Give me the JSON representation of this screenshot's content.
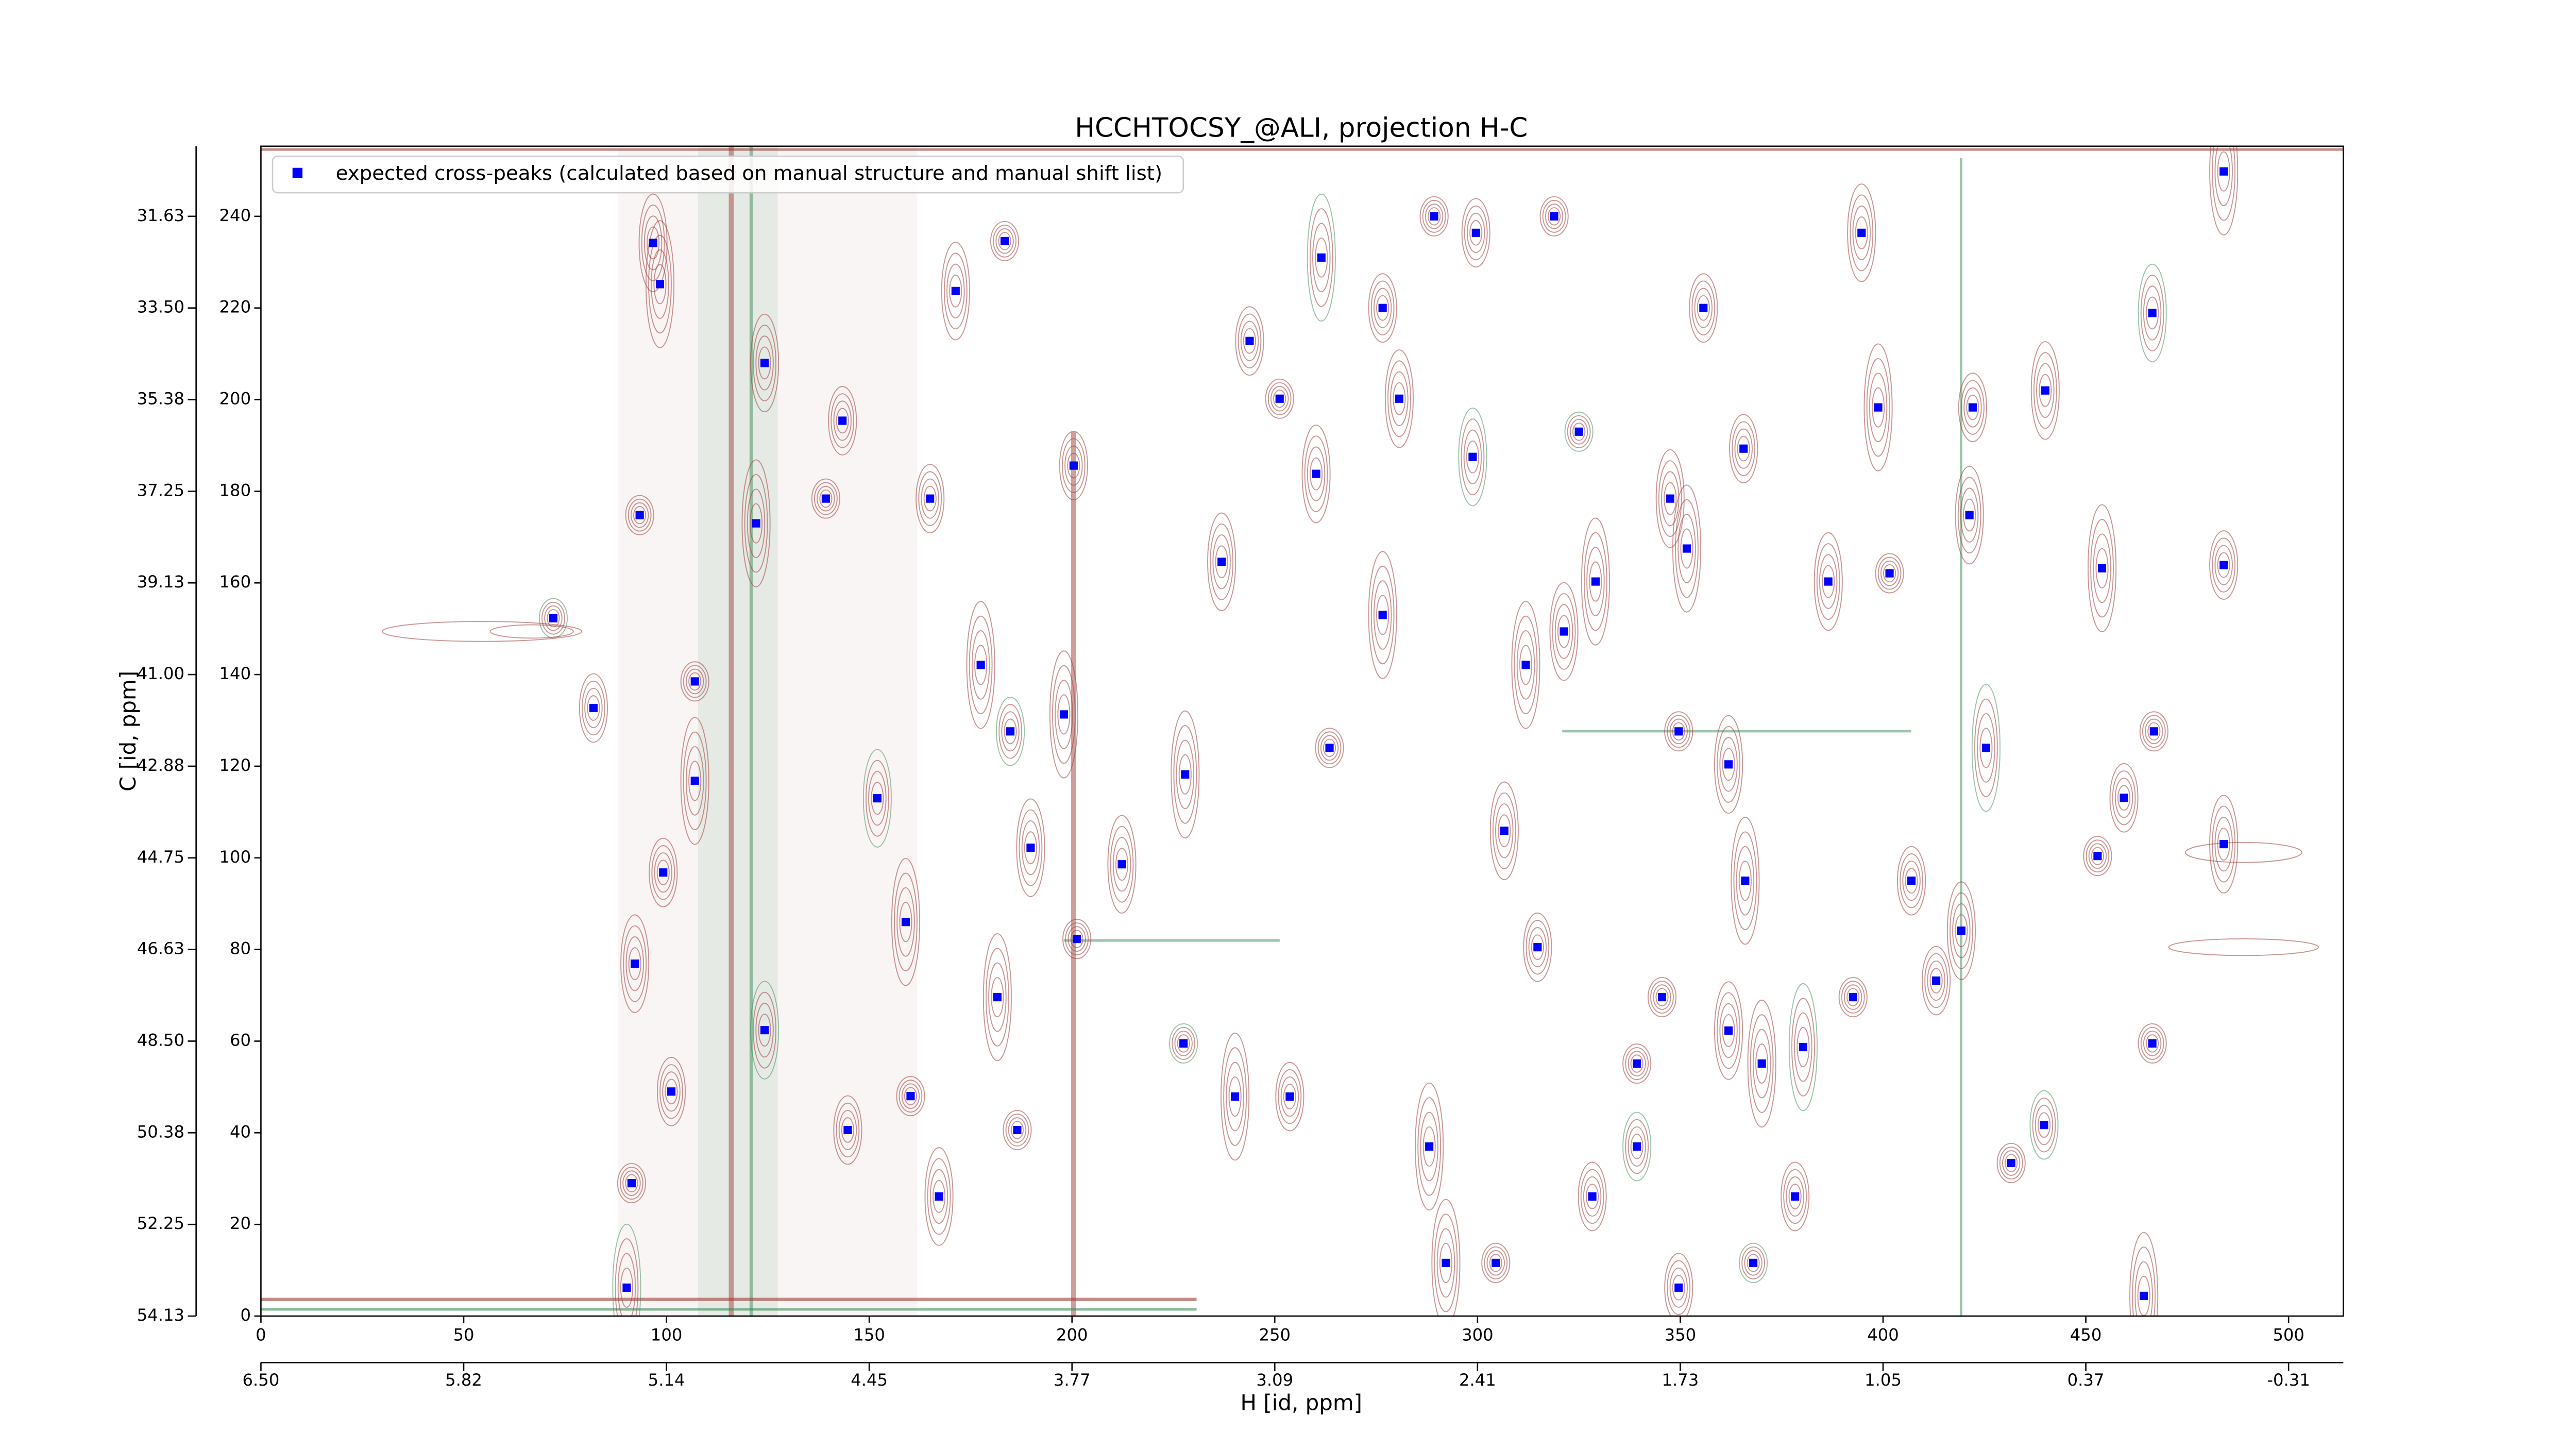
{
  "chart_data": {
    "type": "scatter",
    "title": "HCCHTOCSY_@ALI, projection H-C",
    "xlabel": "H [id, ppm]",
    "ylabel": "C [id, ppm]",
    "xlim": [
      0,
      513.5
    ],
    "ylim": [
      0,
      255.3
    ],
    "xticks": [
      0,
      50,
      100,
      150,
      200,
      250,
      300,
      350,
      400,
      450,
      500
    ],
    "yticks": [
      0,
      20,
      40,
      60,
      80,
      100,
      120,
      140,
      160,
      180,
      200,
      220,
      240
    ],
    "x2lim": [
      0,
      513.5
    ],
    "x2ticks": [
      {
        "value": 0,
        "label": "6.50"
      },
      {
        "value": 50,
        "label": "5.82"
      },
      {
        "value": 100,
        "label": "5.14"
      },
      {
        "value": 150,
        "label": "4.45"
      },
      {
        "value": 200,
        "label": "3.77"
      },
      {
        "value": 250,
        "label": "3.09"
      },
      {
        "value": 300,
        "label": "2.41"
      },
      {
        "value": 350,
        "label": "1.73"
      },
      {
        "value": 400,
        "label": "1.05"
      },
      {
        "value": 450,
        "label": "0.37"
      },
      {
        "value": 500,
        "label": "-0.31"
      }
    ],
    "y2lim": [
      0,
      255.3
    ],
    "y2ticks": [
      {
        "value": 0,
        "label": "54.13"
      },
      {
        "value": 20,
        "label": "52.25"
      },
      {
        "value": 40,
        "label": "50.38"
      },
      {
        "value": 60,
        "label": "48.50"
      },
      {
        "value": 80,
        "label": "46.63"
      },
      {
        "value": 100,
        "label": "44.75"
      },
      {
        "value": 120,
        "label": "42.88"
      },
      {
        "value": 140,
        "label": "41.00"
      },
      {
        "value": 160,
        "label": "39.13"
      },
      {
        "value": 180,
        "label": "37.25"
      },
      {
        "value": 200,
        "label": "35.38"
      },
      {
        "value": 220,
        "label": "33.50"
      },
      {
        "value": 240,
        "label": "31.63"
      }
    ],
    "legend": "upper left",
    "series": [
      {
        "name": "expected cross-peaks (calculated based on manual structure and manual shift list)",
        "color": "#0000ff",
        "x": [
          72.1,
          82.0,
          96.7,
          98.4,
          93.4,
          99.2,
          92.2,
          90.2,
          91.4,
          101.2,
          124.2,
          122.1,
          139.3,
          143.4,
          152,
          159,
          160.2,
          165,
          171.3,
          177.5,
          183.4,
          184.8,
          189.8,
          198,
          201.2,
          200.4,
          212.3,
          227.9,
          227.5,
          243.8,
          236.9,
          240.2,
          251.2,
          253.7,
          260.2,
          261.5,
          263.5,
          276.6,
          280.7,
          276.6,
          289.3,
          299.6,
          298.8,
          311.9,
          318.9,
          314.8,
          321.3,
          329.1,
          339.3,
          339.3,
          347.5,
          351.6,
          349.6,
          355.7,
          361.9,
          370.1,
          368,
          378.3,
          386.5,
          398.8,
          401.6,
          407,
          421.3,
          425.4,
          431.6,
          422.1,
          440,
          454,
          452.9,
          459.4,
          466.4,
          464.3,
          466.8,
          484,
          484,
          484,
          466.4,
          439.7,
          419.3,
          366,
          345.5,
          328.3,
          306.6,
          292.2,
          325,
          365.6,
          394.7,
          288.1,
          304.5,
          349.6,
          361.9,
          380.3,
          392.6,
          413.1,
          167.2,
          181.6,
          186.5,
          144.7,
          124.2,
          107,
          107
        ],
        "values": [
          152.3,
          132.7,
          234.2,
          225.2,
          174.8,
          96.8,
          76.9,
          6.2,
          29,
          49,
          208,
          173,
          178.4,
          195.4,
          113,
          86,
          48,
          178.4,
          223.7,
          142.1,
          234.6,
          127.6,
          102.2,
          131.3,
          82.3,
          185.6,
          98.6,
          118.2,
          59.5,
          212.8,
          164.6,
          47.9,
          200.2,
          47.9,
          183.8,
          231,
          124,
          220,
          200.2,
          153,
          240,
          236.4,
          187.5,
          142.1,
          240,
          80.5,
          149.4,
          160.3,
          55.1,
          37,
          178.4,
          167.5,
          127.6,
          220,
          120.4,
          55.1,
          11.6,
          26.1,
          160.3,
          198.3,
          162.1,
          95,
          174.8,
          124,
          33.4,
          198.3,
          202,
          163.2,
          100.4,
          113.1,
          218.9,
          4.4,
          127.6,
          163.9,
          103,
          249.8,
          59.5,
          41.7,
          84.1,
          95,
          69.6,
          26.1,
          105.9,
          11.6,
          193,
          189.3,
          236.4,
          37,
          11.6,
          6.2,
          62.3,
          58.7,
          69.6,
          73.2,
          26.1,
          69.6,
          40.6,
          40.6,
          62.4,
          116.8,
          138.5
        ]
      }
    ]
  }
}
